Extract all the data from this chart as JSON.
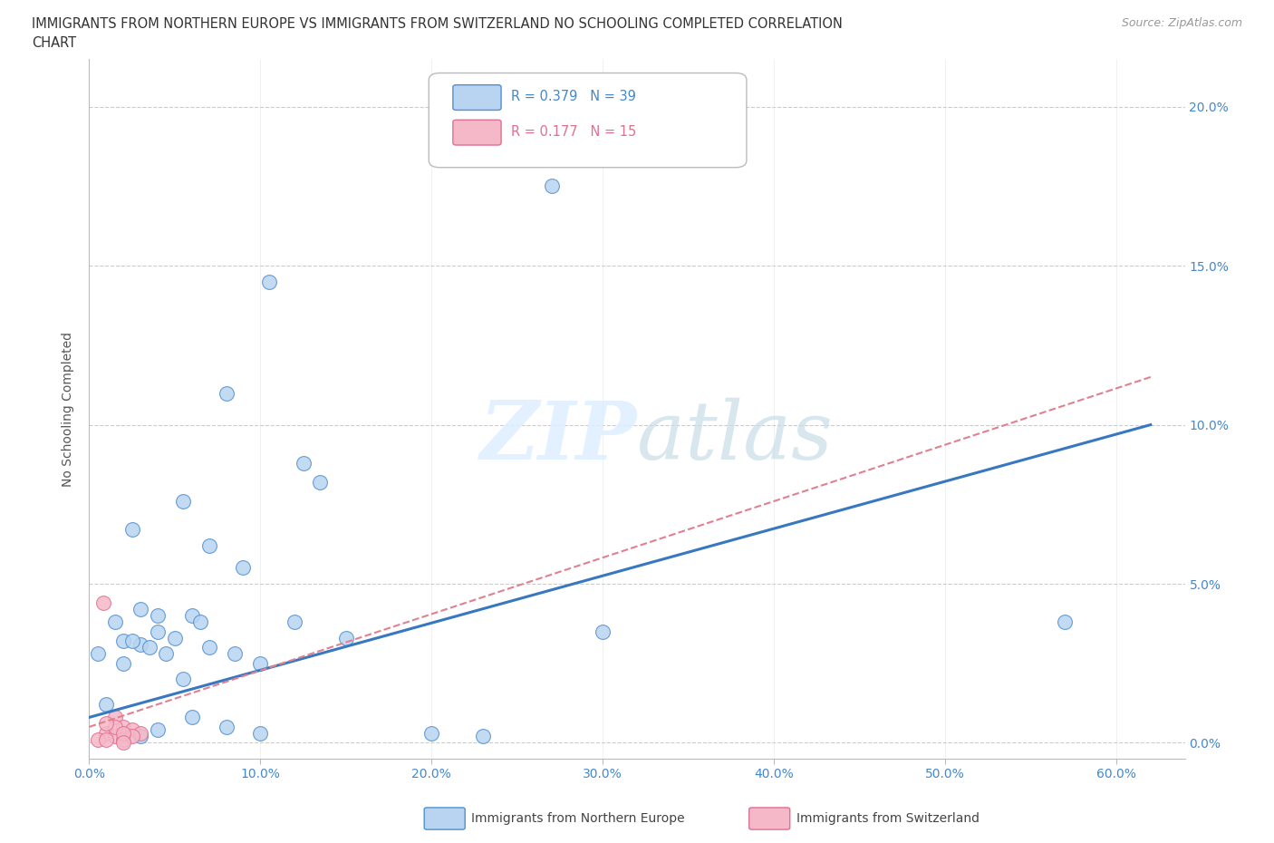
{
  "title_line1": "IMMIGRANTS FROM NORTHERN EUROPE VS IMMIGRANTS FROM SWITZERLAND NO SCHOOLING COMPLETED CORRELATION",
  "title_line2": "CHART",
  "source": "Source: ZipAtlas.com",
  "ylabel": "No Schooling Completed",
  "xlim": [
    0.0,
    0.64
  ],
  "ylim": [
    -0.005,
    0.215
  ],
  "blue_R": 0.379,
  "blue_N": 39,
  "pink_R": 0.177,
  "pink_N": 15,
  "blue_fill": "#b8d4f0",
  "pink_fill": "#f5b8c8",
  "blue_edge": "#5090d0",
  "pink_edge": "#e07090",
  "blue_line": "#3878c0",
  "pink_line": "#e08090",
  "grid_color": "#cccccc",
  "tick_color": "#4488cc",
  "blue_dots_x": [
    0.27,
    0.105,
    0.08,
    0.125,
    0.135,
    0.055,
    0.025,
    0.07,
    0.09,
    0.03,
    0.06,
    0.065,
    0.04,
    0.05,
    0.02,
    0.03,
    0.07,
    0.085,
    0.1,
    0.15,
    0.57,
    0.3,
    0.12,
    0.02,
    0.04,
    0.035,
    0.045,
    0.025,
    0.015,
    0.005,
    0.06,
    0.08,
    0.1,
    0.2,
    0.23,
    0.04,
    0.03,
    0.055,
    0.01
  ],
  "blue_dots_y": [
    0.175,
    0.145,
    0.11,
    0.088,
    0.082,
    0.076,
    0.067,
    0.062,
    0.055,
    0.042,
    0.04,
    0.038,
    0.035,
    0.033,
    0.032,
    0.031,
    0.03,
    0.028,
    0.025,
    0.033,
    0.038,
    0.035,
    0.038,
    0.025,
    0.04,
    0.03,
    0.028,
    0.032,
    0.038,
    0.028,
    0.008,
    0.005,
    0.003,
    0.003,
    0.002,
    0.004,
    0.002,
    0.02,
    0.012
  ],
  "pink_dots_x": [
    0.008,
    0.015,
    0.02,
    0.025,
    0.03,
    0.01,
    0.015,
    0.02,
    0.025,
    0.015,
    0.01,
    0.02,
    0.005,
    0.01,
    0.02
  ],
  "pink_dots_y": [
    0.044,
    0.008,
    0.005,
    0.004,
    0.003,
    0.003,
    0.002,
    0.001,
    0.002,
    0.005,
    0.006,
    0.003,
    0.001,
    0.001,
    0.0
  ],
  "blue_line_x0": 0.0,
  "blue_line_y0": 0.008,
  "blue_line_x1": 0.62,
  "blue_line_y1": 0.1,
  "pink_line_x0": 0.0,
  "pink_line_y0": 0.005,
  "pink_line_x1": 0.62,
  "pink_line_y1": 0.115
}
